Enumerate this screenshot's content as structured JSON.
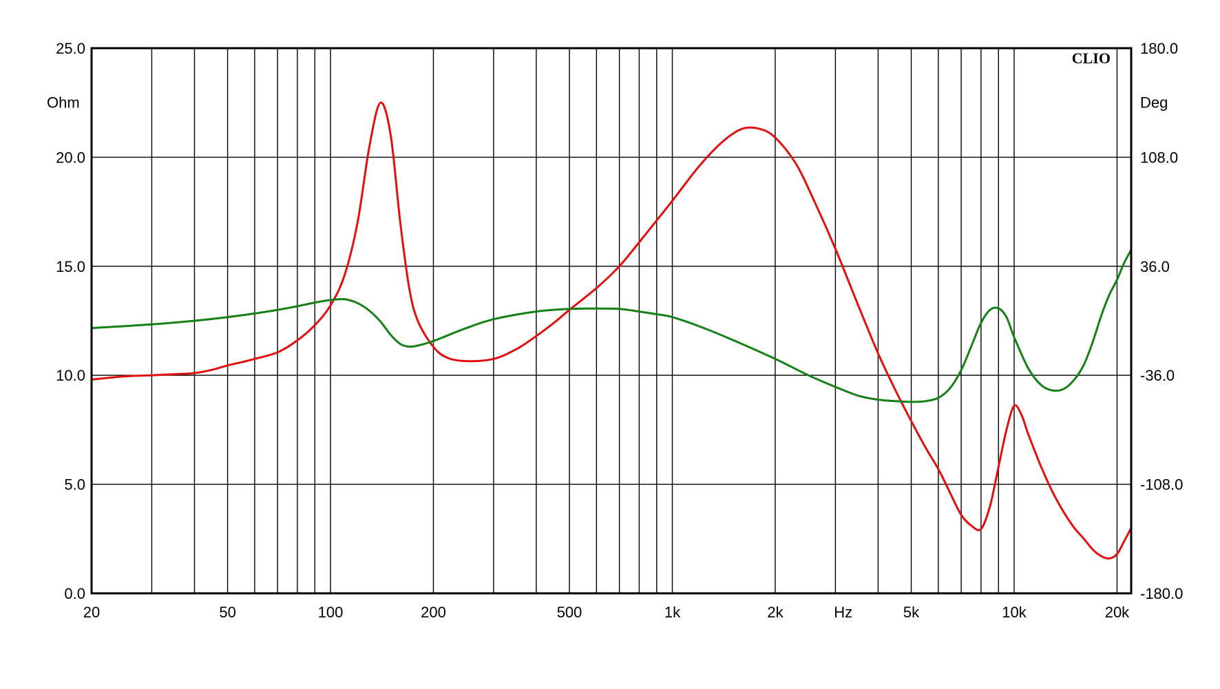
{
  "chart_data": {
    "type": "line",
    "brand": "CLIO",
    "x_scale": "log",
    "xlim": [
      20,
      22000
    ],
    "x_unit_label": "Hz",
    "x_ticks": [
      {
        "value": 20,
        "label": "20"
      },
      {
        "value": 50,
        "label": "50"
      },
      {
        "value": 100,
        "label": "100"
      },
      {
        "value": 200,
        "label": "200"
      },
      {
        "value": 500,
        "label": "500"
      },
      {
        "value": 1000,
        "label": "1k"
      },
      {
        "value": 2000,
        "label": "2k"
      },
      {
        "value": 5000,
        "label": "5k"
      },
      {
        "value": 10000,
        "label": "10k"
      },
      {
        "value": 20000,
        "label": "20k"
      }
    ],
    "grid": true,
    "y_left": {
      "unit": "Ohm",
      "ylim": [
        0,
        25
      ],
      "ticks": [
        {
          "value": 25,
          "label": "25.0"
        },
        {
          "value": 20,
          "label": "20.0"
        },
        {
          "value": 15,
          "label": "15.0"
        },
        {
          "value": 10,
          "label": "10.0"
        },
        {
          "value": 5,
          "label": "5.0"
        },
        {
          "value": 0,
          "label": "0.0"
        }
      ]
    },
    "y_right": {
      "unit": "Deg",
      "ylim": [
        -180,
        180
      ],
      "ticks": [
        {
          "value": 180,
          "label": "180.0"
        },
        {
          "value": 108,
          "label": "108.0"
        },
        {
          "value": 36,
          "label": "36.0"
        },
        {
          "value": -36,
          "label": "-36.0"
        },
        {
          "value": -108,
          "label": "-108.0"
        },
        {
          "value": -180,
          "label": "-180.0"
        }
      ]
    },
    "series": [
      {
        "axis": "left",
        "color": "#e01010",
        "points": [
          [
            20,
            9.8
          ],
          [
            25,
            9.95
          ],
          [
            30,
            10.0
          ],
          [
            35,
            10.05
          ],
          [
            40,
            10.1
          ],
          [
            45,
            10.25
          ],
          [
            50,
            10.45
          ],
          [
            55,
            10.6
          ],
          [
            60,
            10.75
          ],
          [
            70,
            11.05
          ],
          [
            80,
            11.6
          ],
          [
            90,
            12.3
          ],
          [
            100,
            13.2
          ],
          [
            110,
            14.6
          ],
          [
            120,
            17.0
          ],
          [
            130,
            20.5
          ],
          [
            140,
            22.5
          ],
          [
            150,
            21.0
          ],
          [
            160,
            17.0
          ],
          [
            170,
            14.0
          ],
          [
            180,
            12.5
          ],
          [
            200,
            11.3
          ],
          [
            220,
            10.8
          ],
          [
            250,
            10.65
          ],
          [
            300,
            10.75
          ],
          [
            350,
            11.2
          ],
          [
            400,
            11.8
          ],
          [
            450,
            12.4
          ],
          [
            500,
            13.0
          ],
          [
            600,
            14.0
          ],
          [
            700,
            15.0
          ],
          [
            800,
            16.1
          ],
          [
            900,
            17.1
          ],
          [
            1000,
            18.0
          ],
          [
            1200,
            19.6
          ],
          [
            1400,
            20.7
          ],
          [
            1600,
            21.3
          ],
          [
            1800,
            21.3
          ],
          [
            2000,
            20.9
          ],
          [
            2300,
            19.7
          ],
          [
            2600,
            18.0
          ],
          [
            3000,
            15.8
          ],
          [
            3500,
            13.2
          ],
          [
            4000,
            11.0
          ],
          [
            4500,
            9.3
          ],
          [
            5000,
            7.9
          ],
          [
            5500,
            6.7
          ],
          [
            6000,
            5.7
          ],
          [
            6500,
            4.6
          ],
          [
            7000,
            3.6
          ],
          [
            7500,
            3.1
          ],
          [
            8000,
            2.95
          ],
          [
            8500,
            4.0
          ],
          [
            9000,
            5.8
          ],
          [
            9500,
            7.5
          ],
          [
            10000,
            8.6
          ],
          [
            10500,
            8.2
          ],
          [
            11000,
            7.3
          ],
          [
            12000,
            5.8
          ],
          [
            13000,
            4.6
          ],
          [
            14000,
            3.7
          ],
          [
            15000,
            3.0
          ],
          [
            16000,
            2.5
          ],
          [
            17000,
            2.0
          ],
          [
            18000,
            1.7
          ],
          [
            19000,
            1.6
          ],
          [
            20000,
            1.8
          ],
          [
            21000,
            2.4
          ],
          [
            22000,
            3.0
          ]
        ]
      },
      {
        "axis": "right",
        "color": "#158015",
        "points": [
          [
            20,
            -4.8
          ],
          [
            30,
            -2.4
          ],
          [
            40,
            0.0
          ],
          [
            50,
            2.4
          ],
          [
            60,
            4.8
          ],
          [
            70,
            7.2
          ],
          [
            80,
            9.6
          ],
          [
            90,
            12.0
          ],
          [
            100,
            13.7
          ],
          [
            110,
            14.2
          ],
          [
            120,
            11.7
          ],
          [
            130,
            6.6
          ],
          [
            140,
            -0.5
          ],
          [
            150,
            -9.3
          ],
          [
            160,
            -15.3
          ],
          [
            170,
            -17.1
          ],
          [
            180,
            -16.4
          ],
          [
            200,
            -13.4
          ],
          [
            250,
            -4.8
          ],
          [
            300,
            1.0
          ],
          [
            400,
            6.1
          ],
          [
            500,
            7.8
          ],
          [
            600,
            8.1
          ],
          [
            700,
            7.8
          ],
          [
            800,
            6.1
          ],
          [
            900,
            4.3
          ],
          [
            1000,
            2.4
          ],
          [
            1200,
            -3.7
          ],
          [
            1500,
            -12.6
          ],
          [
            2000,
            -25.2
          ],
          [
            2500,
            -36.0
          ],
          [
            3000,
            -43.7
          ],
          [
            3500,
            -49.5
          ],
          [
            4000,
            -52.1
          ],
          [
            4500,
            -53.1
          ],
          [
            5000,
            -53.6
          ],
          [
            5500,
            -53.1
          ],
          [
            6000,
            -50.9
          ],
          [
            6500,
            -44.4
          ],
          [
            7000,
            -32.6
          ],
          [
            7500,
            -16.6
          ],
          [
            8000,
            -1.4
          ],
          [
            8500,
            7.2
          ],
          [
            9000,
            8.2
          ],
          [
            9500,
            2.4
          ],
          [
            10000,
            -10.8
          ],
          [
            11000,
            -31.4
          ],
          [
            12000,
            -42.5
          ],
          [
            13000,
            -46.1
          ],
          [
            14000,
            -44.9
          ],
          [
            15000,
            -38.9
          ],
          [
            16000,
            -29.0
          ],
          [
            17000,
            -13.7
          ],
          [
            18000,
            3.6
          ],
          [
            19000,
            17.3
          ],
          [
            20000,
            27.1
          ],
          [
            21000,
            38.4
          ],
          [
            22000,
            46.8
          ]
        ]
      }
    ]
  }
}
